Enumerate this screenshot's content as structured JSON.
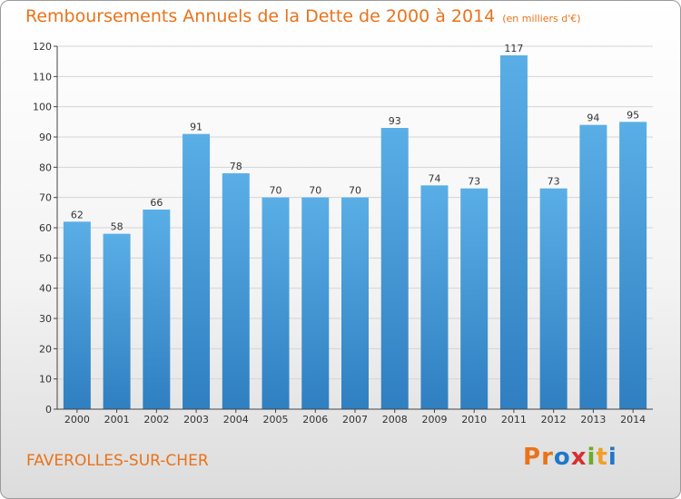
{
  "title": "Remboursements Annuels de la Dette de 2000 à 2014",
  "unit": "(en milliers d'€)",
  "city": "FAVEROLLES-SUR-CHER",
  "logo": {
    "text": "Proxiti",
    "colors": [
      "#e8731a",
      "#e8731a",
      "#1f78c8",
      "#d72f2f",
      "#6cab2a",
      "#f0a02a",
      "#1f78c8"
    ]
  },
  "colors": {
    "title": "#e8731a",
    "bar_light": "#5aaee6",
    "bar_dark": "#2f7fc1",
    "grid": "#d4d4d4"
  },
  "chart_data": {
    "type": "bar",
    "title": "Remboursements Annuels de la Dette de 2000 à 2014",
    "subtitle": "(en milliers d'€)",
    "categories": [
      "2000",
      "2001",
      "2002",
      "2003",
      "2004",
      "2005",
      "2006",
      "2007",
      "2008",
      "2009",
      "2010",
      "2011",
      "2012",
      "2013",
      "2014"
    ],
    "values": [
      62,
      58,
      66,
      91,
      78,
      70,
      70,
      70,
      93,
      74,
      73,
      117,
      73,
      94,
      95
    ],
    "ylim": [
      0,
      120
    ],
    "yticks": [
      0,
      10,
      20,
      30,
      40,
      50,
      60,
      70,
      80,
      90,
      100,
      110,
      120
    ],
    "grid": true,
    "xlabel": "",
    "ylabel": ""
  }
}
